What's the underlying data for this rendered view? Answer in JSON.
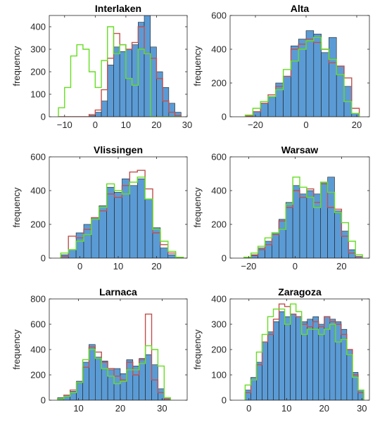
{
  "colors": {
    "bars_fill": "#5b9bd5",
    "bars_edge": "#1f1f1f",
    "red_outline": "#c0504d",
    "green_outline": "#66dd22",
    "axes": "#262626"
  },
  "chart_data": [
    {
      "type": "bar",
      "title": "Interlaken",
      "ylabel": "frequency",
      "xlim": [
        -15,
        30
      ],
      "ylim": [
        0,
        450
      ],
      "xticks": [
        -10,
        0,
        10,
        20,
        30
      ],
      "yticks": [
        0,
        100,
        200,
        300,
        400
      ],
      "bin_edges": [
        -12,
        -10,
        -8,
        -6,
        -4,
        -2,
        0,
        2,
        4,
        6,
        8,
        10,
        12,
        14,
        16,
        18,
        20,
        22,
        24,
        26,
        28
      ],
      "series": [
        {
          "role": "bars",
          "values": [
            0,
            0,
            0,
            0,
            0,
            5,
            20,
            70,
            230,
            310,
            290,
            300,
            320,
            420,
            450,
            310,
            200,
            130,
            60,
            20
          ]
        },
        {
          "role": "red-outline",
          "values": [
            0,
            0,
            0,
            0,
            0,
            10,
            30,
            120,
            260,
            370,
            320,
            300,
            330,
            400,
            280,
            260,
            170,
            70,
            20,
            5
          ]
        },
        {
          "role": "green-outline",
          "values": [
            40,
            130,
            270,
            320,
            300,
            200,
            130,
            250,
            400,
            280,
            320,
            170,
            140,
            300,
            280,
            0,
            0,
            0,
            0,
            0
          ]
        }
      ]
    },
    {
      "type": "bar",
      "title": "Alta",
      "ylabel": "frequency",
      "xlim": [
        -30,
        25
      ],
      "ylim": [
        0,
        600
      ],
      "xticks": [
        -20,
        0,
        20
      ],
      "yticks": [
        0,
        200,
        400,
        600
      ],
      "bin_edges": [
        -24,
        -21,
        -18,
        -15,
        -12,
        -9,
        -6,
        -3,
        0,
        3,
        6,
        9,
        12,
        15,
        18,
        21
      ],
      "series": [
        {
          "role": "bars",
          "values": [
            5,
            30,
            80,
            120,
            200,
            240,
            420,
            460,
            510,
            490,
            380,
            470,
            300,
            180,
            20
          ]
        },
        {
          "role": "red-outline",
          "values": [
            5,
            30,
            80,
            130,
            180,
            240,
            400,
            430,
            460,
            440,
            400,
            320,
            300,
            230,
            50
          ]
        },
        {
          "role": "green-outline",
          "values": [
            10,
            50,
            90,
            120,
            160,
            280,
            330,
            400,
            450,
            470,
            400,
            340,
            250,
            90,
            20
          ]
        }
      ]
    },
    {
      "type": "bar",
      "title": "Vlissingen",
      "ylabel": "frequency",
      "xlim": [
        -8,
        28
      ],
      "ylim": [
        0,
        600
      ],
      "xticks": [
        0,
        10,
        20
      ],
      "yticks": [
        0,
        200,
        400,
        600
      ],
      "bin_edges": [
        -5,
        -3,
        -1,
        1,
        3,
        5,
        7,
        9,
        11,
        13,
        15,
        17,
        19,
        21,
        23,
        25,
        27
      ],
      "series": [
        {
          "role": "bars",
          "values": [
            20,
            50,
            150,
            200,
            240,
            310,
            420,
            390,
            470,
            430,
            470,
            350,
            180,
            60,
            20,
            5
          ]
        },
        {
          "role": "red-outline",
          "values": [
            10,
            130,
            120,
            170,
            240,
            280,
            380,
            360,
            430,
            510,
            520,
            410,
            150,
            80,
            30,
            5
          ]
        },
        {
          "role": "green-outline",
          "values": [
            30,
            50,
            100,
            140,
            230,
            300,
            440,
            400,
            380,
            450,
            480,
            350,
            170,
            100,
            40,
            5
          ]
        }
      ]
    },
    {
      "type": "bar",
      "title": "Warsaw",
      "ylabel": "frequency",
      "xlim": [
        -28,
        32
      ],
      "ylim": [
        0,
        600
      ],
      "xticks": [
        -20,
        0,
        20
      ],
      "yticks": [
        0,
        200,
        400,
        600
      ],
      "bin_edges": [
        -22,
        -19,
        -16,
        -13,
        -10,
        -7,
        -4,
        -1,
        2,
        5,
        8,
        11,
        14,
        17,
        20,
        23,
        26,
        29
      ],
      "series": [
        {
          "role": "bars",
          "values": [
            5,
            20,
            60,
            100,
            150,
            230,
            330,
            430,
            380,
            400,
            380,
            450,
            480,
            280,
            160,
            50,
            10
          ]
        },
        {
          "role": "red-outline",
          "values": [
            5,
            15,
            50,
            80,
            140,
            220,
            300,
            400,
            360,
            410,
            330,
            440,
            300,
            290,
            130,
            30,
            10
          ]
        },
        {
          "role": "green-outline",
          "values": [
            5,
            30,
            70,
            120,
            150,
            170,
            320,
            480,
            420,
            360,
            300,
            450,
            390,
            270,
            210,
            100,
            20
          ]
        }
      ]
    },
    {
      "type": "bar",
      "title": "Larnaca",
      "ylabel": "frequency",
      "xlim": [
        3,
        36
      ],
      "ylim": [
        0,
        800
      ],
      "xticks": [
        10,
        20,
        30
      ],
      "yticks": [
        0,
        200,
        400,
        600,
        800
      ],
      "bin_edges": [
        5,
        6.5,
        8,
        9.5,
        11,
        12.5,
        14,
        15.5,
        17,
        18.5,
        20,
        21.5,
        23,
        24.5,
        26,
        27.5,
        29,
        30.5,
        32
      ],
      "series": [
        {
          "role": "bars",
          "values": [
            20,
            40,
            70,
            150,
            300,
            440,
            340,
            310,
            240,
            250,
            210,
            320,
            270,
            330,
            360,
            280,
            90,
            20
          ]
        },
        {
          "role": "red-outline",
          "values": [
            10,
            40,
            80,
            140,
            260,
            420,
            380,
            300,
            250,
            190,
            160,
            300,
            200,
            320,
            680,
            160,
            60,
            10
          ]
        },
        {
          "role": "green-outline",
          "values": [
            10,
            30,
            60,
            140,
            320,
            400,
            330,
            250,
            190,
            130,
            150,
            240,
            240,
            290,
            430,
            400,
            270,
            20
          ]
        }
      ]
    },
    {
      "type": "bar",
      "title": "Zaragoza",
      "ylabel": "frequency",
      "xlim": [
        -5,
        32
      ],
      "ylim": [
        0,
        400
      ],
      "xticks": [
        0,
        10,
        20,
        30
      ],
      "yticks": [
        0,
        100,
        200,
        300,
        400
      ],
      "bin_edges": [
        -1,
        0.5,
        2,
        3.5,
        5,
        6.5,
        8,
        9.5,
        11,
        12.5,
        14,
        15.5,
        17,
        18.5,
        20,
        21.5,
        23,
        24.5,
        26,
        27.5,
        29,
        30.5
      ],
      "series": [
        {
          "role": "bars",
          "values": [
            40,
            90,
            150,
            230,
            270,
            310,
            350,
            330,
            340,
            330,
            310,
            320,
            330,
            300,
            330,
            320,
            310,
            280,
            200,
            110,
            40
          ]
        },
        {
          "role": "red-outline",
          "values": [
            30,
            80,
            140,
            230,
            260,
            320,
            380,
            370,
            340,
            330,
            300,
            290,
            310,
            290,
            330,
            310,
            300,
            260,
            200,
            100,
            30
          ]
        },
        {
          "role": "green-outline",
          "values": [
            60,
            80,
            190,
            260,
            330,
            360,
            360,
            300,
            380,
            350,
            260,
            280,
            280,
            260,
            280,
            300,
            230,
            240,
            180,
            90,
            40
          ]
        }
      ]
    }
  ]
}
